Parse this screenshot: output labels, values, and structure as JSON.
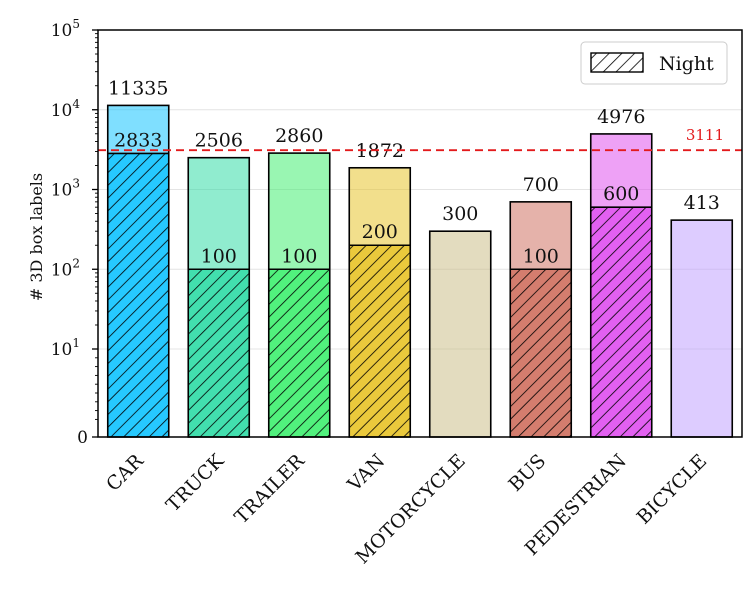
{
  "chart_data": {
    "type": "bar",
    "ylabel": "# 3D box labels",
    "yscale": "symlog",
    "ylim": [
      0,
      100000
    ],
    "yticks": [
      {
        "value": 0,
        "base": "0",
        "exp": ""
      },
      {
        "value": 10,
        "base": "10",
        "exp": "1"
      },
      {
        "value": 100,
        "base": "10",
        "exp": "2"
      },
      {
        "value": 1000,
        "base": "10",
        "exp": "3"
      },
      {
        "value": 10000,
        "base": "10",
        "exp": "4"
      },
      {
        "value": 100000,
        "base": "10",
        "exp": "5"
      }
    ],
    "grid": "horizontal",
    "categories": [
      "CAR",
      "TRUCK",
      "TRAILER",
      "VAN",
      "MOTORCYCLE",
      "BUS",
      "PEDESTRIAN",
      "BICYCLE"
    ],
    "series": [
      {
        "name": "",
        "values": [
          11335,
          2506,
          2860,
          1872,
          300,
          700,
          4976,
          413
        ]
      },
      {
        "name": "Night",
        "values": [
          2833,
          100,
          100,
          200,
          null,
          100,
          600,
          null
        ]
      }
    ],
    "colors": [
      "#00bfff",
      "#21d9a0",
      "#33ee66",
      "#e6bf1a",
      "#c8b980",
      "#cc6655",
      "#dd44ee",
      "#bb99ff"
    ],
    "reference_line": {
      "value": 3111,
      "label": "3111",
      "color": "#e31a1c",
      "style": "dashed"
    },
    "legend": {
      "label": "Night",
      "position": "top-right",
      "pattern": "hatched"
    }
  }
}
